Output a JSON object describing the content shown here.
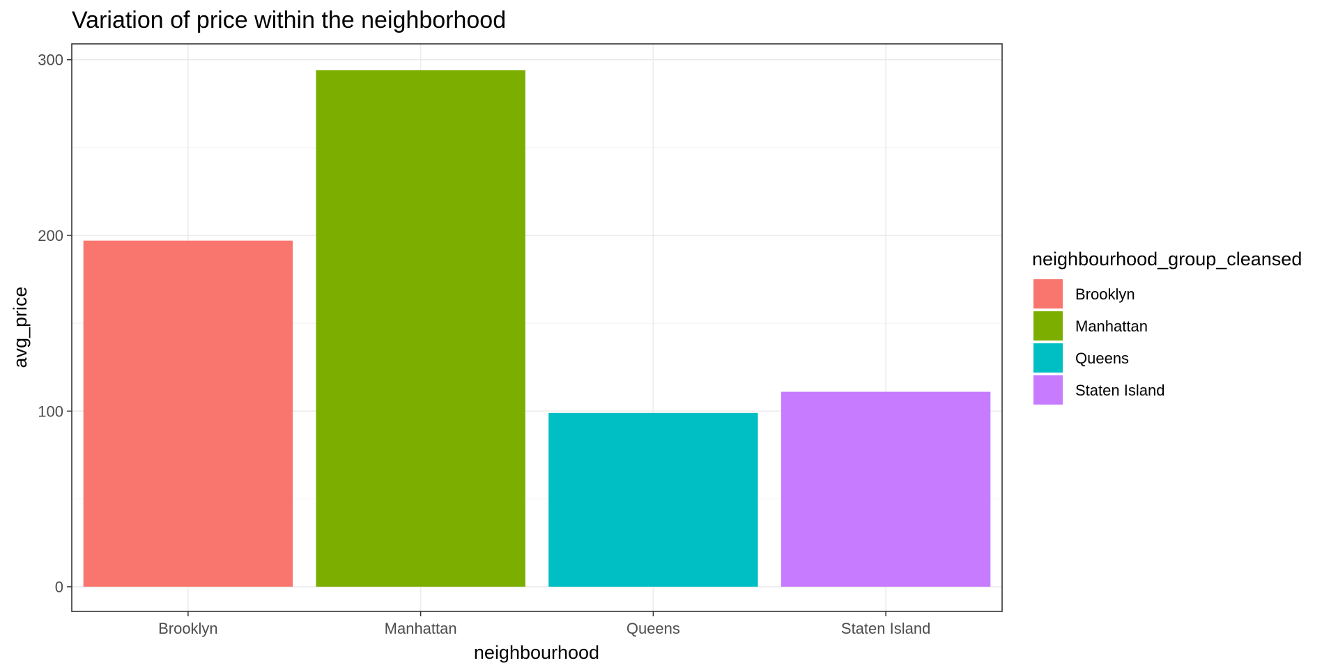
{
  "chart_data": {
    "type": "bar",
    "title": "Variation of price within the neighborhood",
    "xlabel": "neighbourhood",
    "ylabel": "avg_price",
    "categories": [
      "Brooklyn",
      "Manhattan",
      "Queens",
      "Staten Island"
    ],
    "values": [
      197,
      294,
      99,
      111
    ],
    "ylim": [
      -14,
      309
    ],
    "yticks": [
      0,
      100,
      200,
      300
    ],
    "grid": true,
    "legend": {
      "title": "neighbourhood_group_cleansed",
      "placement": "right",
      "entries": [
        "Brooklyn",
        "Manhattan",
        "Queens",
        "Staten Island"
      ]
    },
    "colors": [
      "#F8766D",
      "#7CAE00",
      "#00BFC4",
      "#C77CFF"
    ]
  }
}
